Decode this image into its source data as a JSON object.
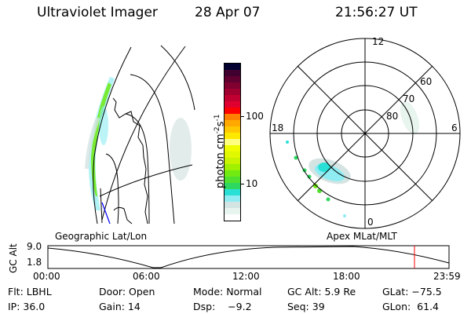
{
  "header": {
    "instrument": "Ultraviolet Imager",
    "date": "28 Apr 07",
    "time": "21:56:27 UT"
  },
  "colorbar": {
    "unit_label": "photon cm",
    "unit_exp1": "-2",
    "unit_s": "s",
    "unit_exp2": "-1",
    "tick_labels": [
      "100",
      "10"
    ],
    "colors": [
      "#ffffff",
      "#e8f4ee",
      "#d4e4e2",
      "#8eecf2",
      "#2ae0d6",
      "#2ed860",
      "#50e030",
      "#70ea10",
      "#a0f000",
      "#c8f400",
      "#e0f800",
      "#f0fc00",
      "#ffff80",
      "#ffe800",
      "#ffc800",
      "#ffa800",
      "#ff8000",
      "#ff0000",
      "#e00030",
      "#c00030",
      "#a00030",
      "#800030",
      "#600030",
      "#400030",
      "#000030"
    ],
    "scale": "log"
  },
  "polar_plot": {
    "mlt_labels": {
      "top": "12",
      "left": "18",
      "right": "6",
      "bottom": "0"
    },
    "lat_labels": [
      "80",
      "70",
      "60"
    ]
  },
  "timeline": {
    "left_label": "Geographic Lat/Lon",
    "right_label": "Apex MLat/MLT",
    "y_axis_label": "GC Alt",
    "y_ticks": [
      "9.0",
      "1.8"
    ],
    "x_ticks": [
      "00:00",
      "06:00",
      "12:00",
      "18:00",
      "23:59"
    ],
    "current_marker_color": "#ff0000"
  },
  "info": {
    "row1": [
      "Flt: LBHL",
      "Door: Open",
      "Mode: Normal",
      "GC Alt: 5.9 Re",
      "GLat: −75.5"
    ],
    "row2": [
      "IP: 36.0",
      "Gain: 14",
      "Dsp:    −9.2",
      "Seq: 39",
      "GLon:  61.4"
    ]
  }
}
